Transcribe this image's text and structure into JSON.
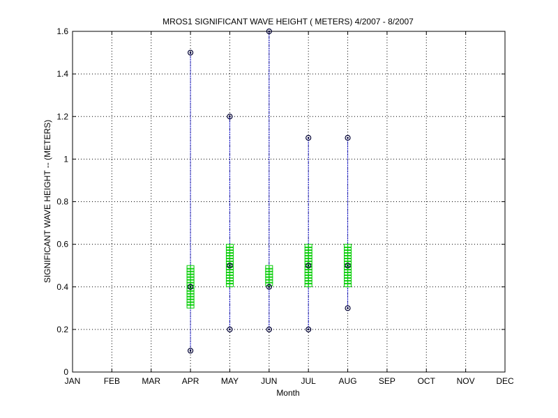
{
  "chart_data": {
    "type": "box",
    "title": "MROS1  SIGNIFICANT WAVE HEIGHT ( METERS) 4/2007 - 8/2007",
    "xlabel": "Month",
    "ylabel": "SIGNIFICANT WAVE HEIGHT -- (METERS)",
    "categories": [
      "JAN",
      "FEB",
      "MAR",
      "APR",
      "MAY",
      "JUN",
      "JUL",
      "AUG",
      "SEP",
      "OCT",
      "NOV",
      "DEC"
    ],
    "ylim": [
      0,
      1.6
    ],
    "yticks": [
      0,
      0.2,
      0.4,
      0.6,
      0.8,
      1,
      1.2,
      1.4,
      1.6
    ],
    "ytick_labels": [
      "0",
      "0.2",
      "0.4",
      "0.6",
      "0.8",
      "1",
      "1.2",
      "1.4",
      "1.6"
    ],
    "grid": true,
    "colors": {
      "whisker": "#0000cc",
      "box": "#00cc00",
      "marker": "#000033",
      "grid": "#000000"
    },
    "series": [
      {
        "category": "APR",
        "min": 0.1,
        "q1": 0.3,
        "median": 0.4,
        "q3": 0.5,
        "max": 1.5
      },
      {
        "category": "MAY",
        "min": 0.2,
        "q1": 0.4,
        "median": 0.5,
        "q3": 0.6,
        "max": 1.2
      },
      {
        "category": "JUN",
        "min": 0.2,
        "q1": 0.4,
        "median": 0.4,
        "q3": 0.5,
        "max": 1.6
      },
      {
        "category": "JUL",
        "min": 0.2,
        "q1": 0.4,
        "median": 0.5,
        "q3": 0.6,
        "max": 1.1
      },
      {
        "category": "AUG",
        "min": 0.3,
        "q1": 0.4,
        "median": 0.5,
        "q3": 0.6,
        "max": 1.1
      }
    ]
  }
}
